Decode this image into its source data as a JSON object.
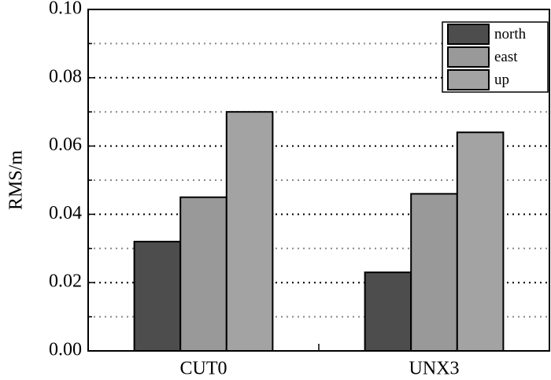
{
  "chart_data": {
    "type": "bar",
    "y_label": "RMS/m",
    "categories": [
      "CUT0",
      "UNX3"
    ],
    "series": [
      {
        "name": "north",
        "color": "#4d4d4d",
        "values": [
          0.032,
          0.023
        ]
      },
      {
        "name": "east",
        "color": "#999999",
        "values": [
          0.045,
          0.046
        ]
      },
      {
        "name": "up",
        "color": "#a3a3a3",
        "values": [
          0.07,
          0.064
        ]
      }
    ],
    "ylim": [
      0,
      0.1
    ],
    "yticks": [
      {
        "value": 0,
        "label": "0.00"
      },
      0.02,
      0.04,
      0.06,
      0.08,
      {
        "value": 0.1,
        "label": "0.10"
      }
    ],
    "minor_yticks": [
      0.01,
      0.03,
      0.05,
      0.07,
      0.09
    ],
    "grid": true,
    "legend": "upper right"
  }
}
